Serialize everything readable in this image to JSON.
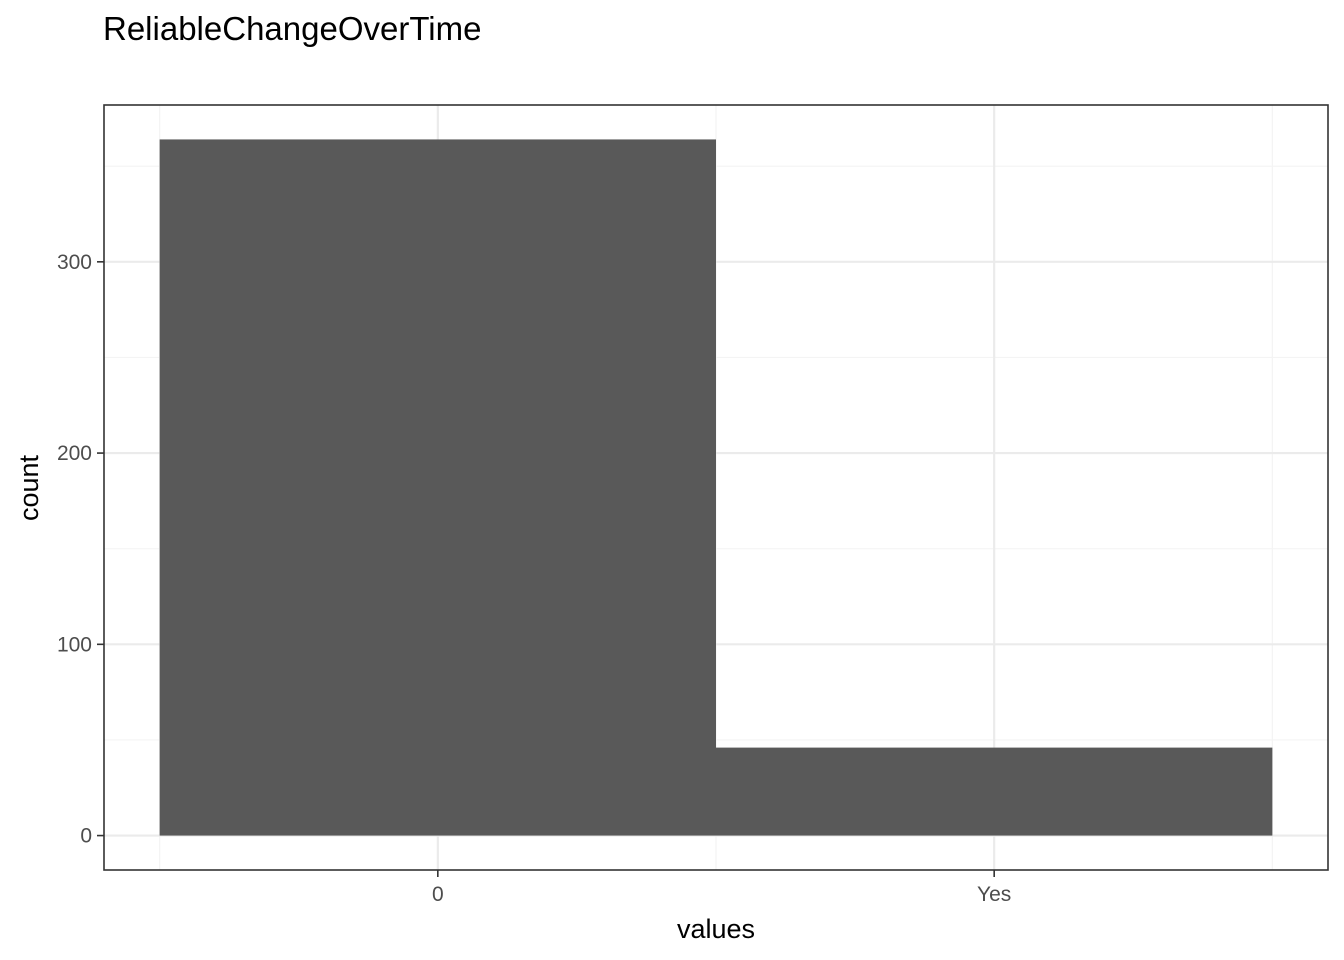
{
  "chart_data": {
    "type": "bar",
    "title": "ReliableChangeOverTime",
    "xlabel": "values",
    "ylabel": "count",
    "categories": [
      "0",
      "Yes"
    ],
    "values": [
      364,
      46
    ],
    "ylim": [
      -18,
      382
    ],
    "yticks": [
      0,
      100,
      200,
      300
    ],
    "ytick_labels": [
      "0",
      "100",
      "200",
      "300"
    ],
    "grid": true,
    "legend": "none",
    "colors": {
      "bar": "#595959",
      "panel_border": "#333333",
      "grid_major": "#ebebeb",
      "grid_minor": "#f4f4f4",
      "tick_text": "#4d4d4d"
    }
  }
}
